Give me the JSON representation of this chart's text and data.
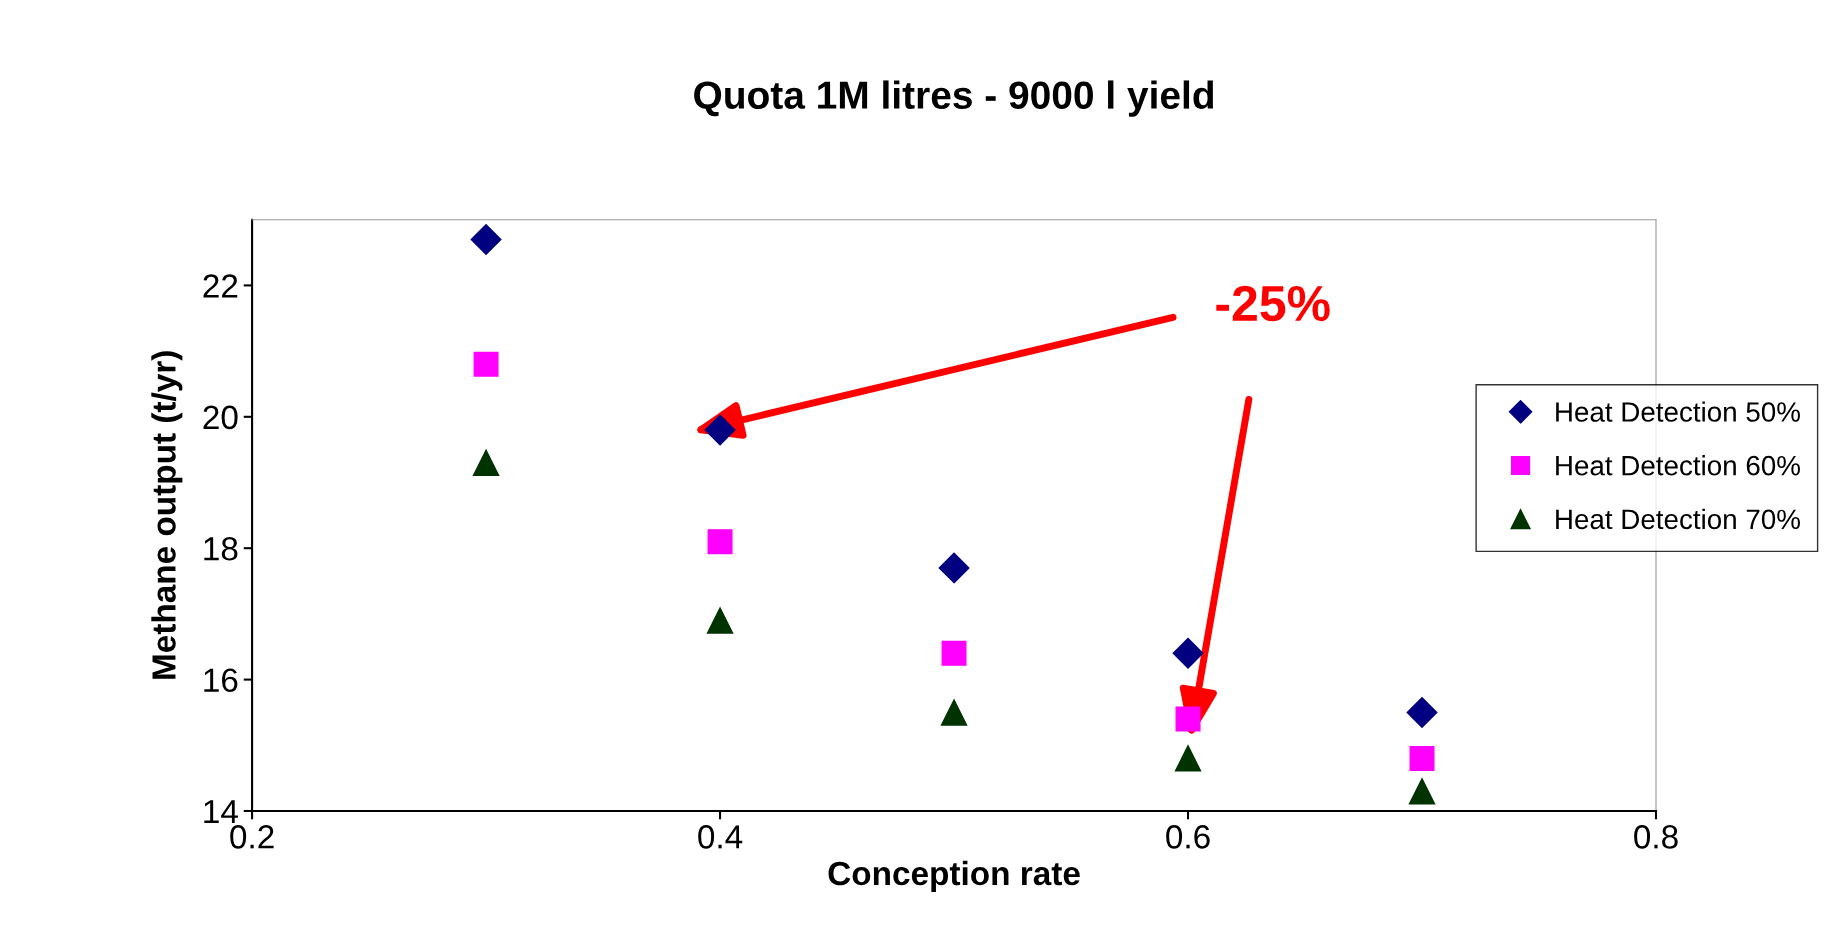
{
  "chart_data": {
    "type": "scatter",
    "title": "Quota 1M litres - 9000 l yield",
    "xlabel": "Conception rate",
    "ylabel": "Methane output (t/yr)",
    "x": [
      0.3,
      0.4,
      0.5,
      0.6,
      0.7
    ],
    "series": [
      {
        "name": "Heat Detection 50%",
        "color": "#000080",
        "marker": "diamond",
        "values": [
          22.7,
          19.8,
          17.7,
          16.4,
          15.5
        ]
      },
      {
        "name": "Heat Detection 60%",
        "color": "#ff00ff",
        "marker": "square",
        "values": [
          20.8,
          18.1,
          16.4,
          15.4,
          14.8
        ]
      },
      {
        "name": "Heat Detection 70%",
        "color": "#003300",
        "marker": "triangle",
        "values": [
          19.3,
          16.9,
          15.5,
          14.8,
          14.3
        ]
      }
    ],
    "xlim": [
      0.2,
      0.8
    ],
    "xticks": [
      0.2,
      0.4,
      0.6,
      0.8
    ],
    "ylim": [
      14,
      23
    ],
    "yticks": [
      14,
      16,
      18,
      20,
      22
    ],
    "grid": false,
    "legend": "right",
    "annotations": [
      "-25%"
    ]
  }
}
